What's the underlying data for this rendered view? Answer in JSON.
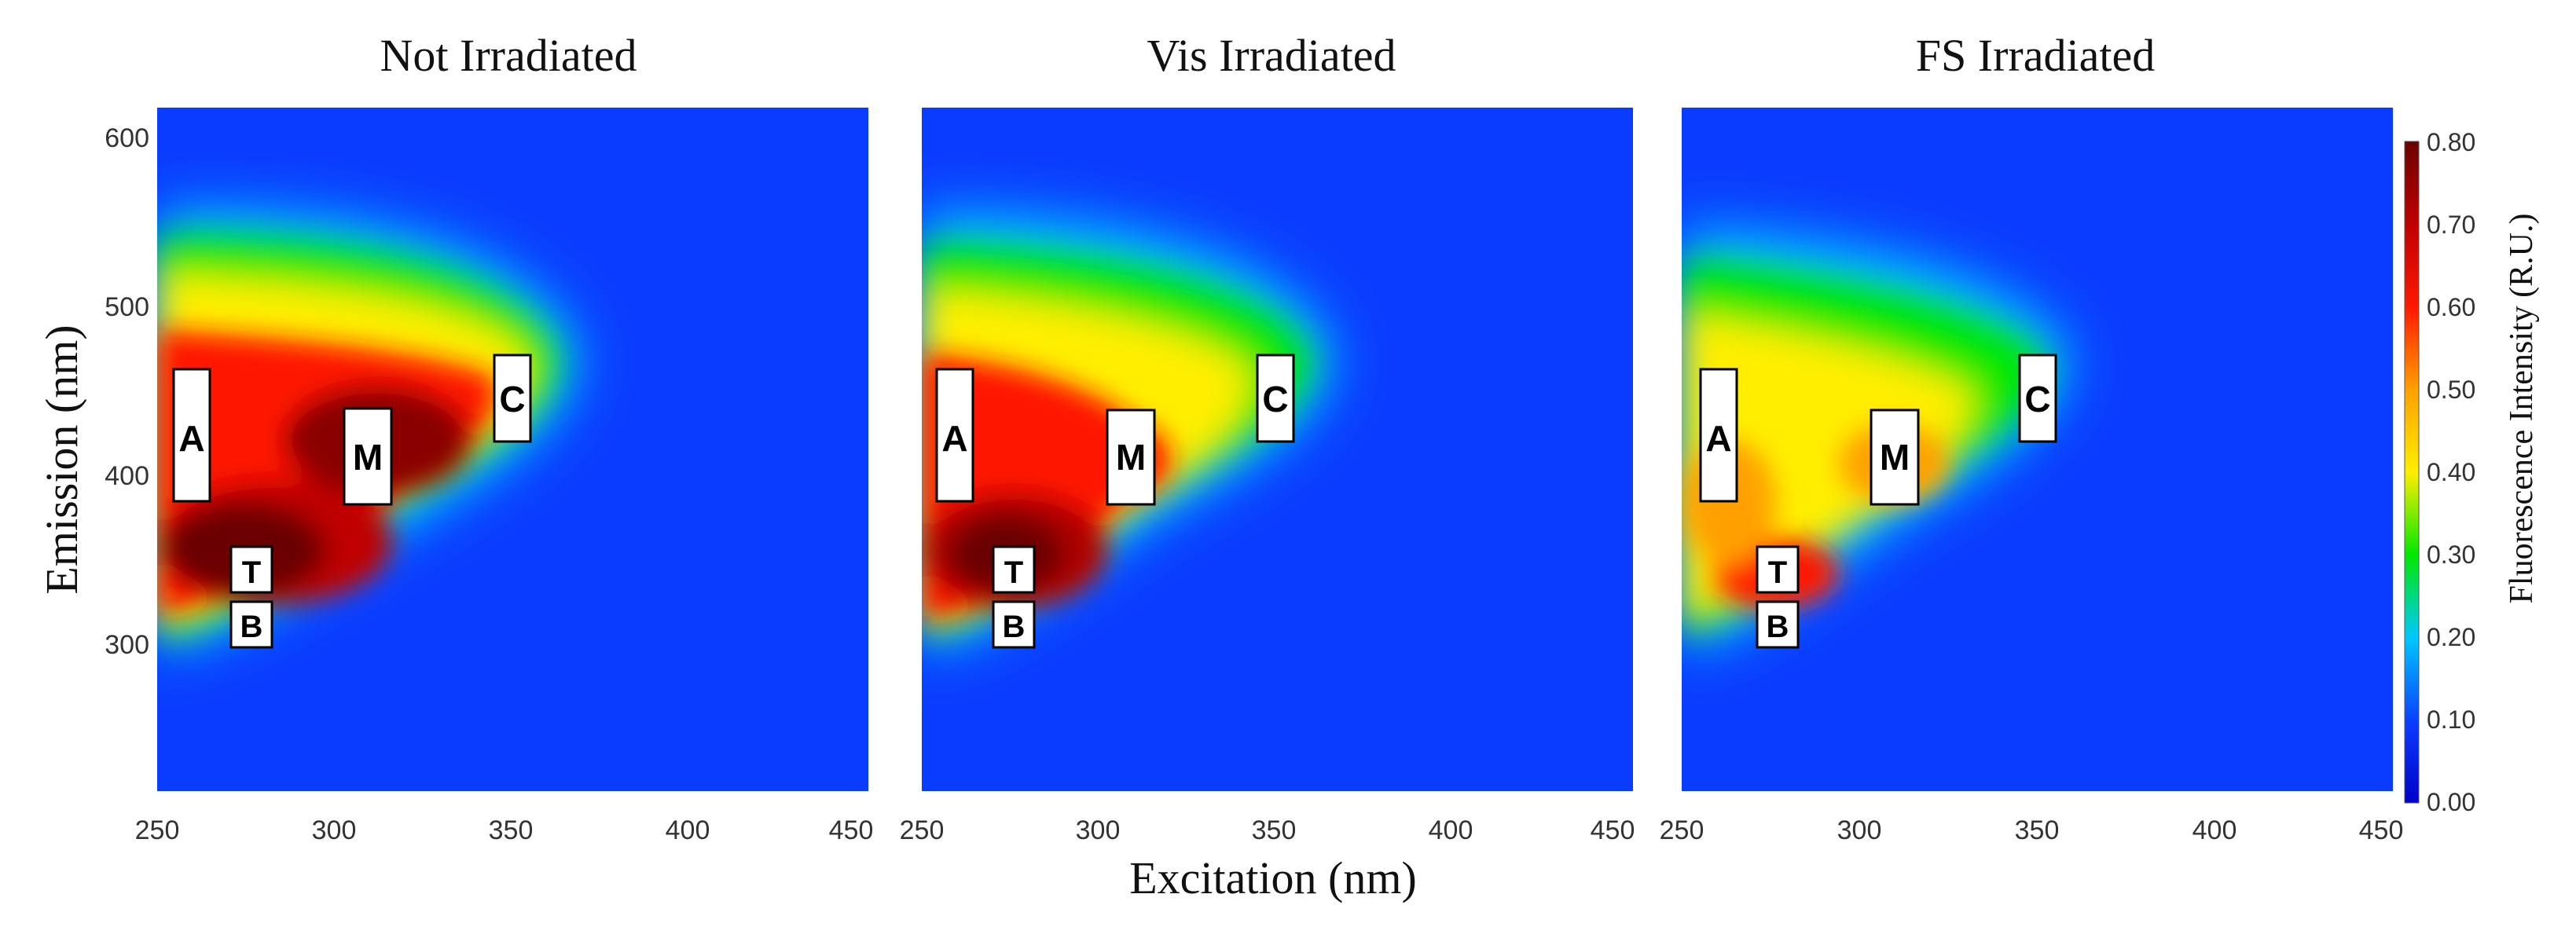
{
  "chart_data": [
    {
      "type": "heatmap",
      "title": "Not Irradiated",
      "xlabel": "Excitation (nm)",
      "ylabel": "Emission (nm)",
      "xlim": [
        250,
        450
      ],
      "ylim": [
        210,
        620
      ],
      "x_ticks": [
        "250",
        "300",
        "350",
        "400",
        "450"
      ],
      "y_ticks": [
        "600",
        "500",
        "400",
        "300"
      ],
      "peaks": [
        {
          "ex": 285,
          "em": 360,
          "intensity": 0.8
        },
        {
          "ex": 262,
          "em": 400,
          "intensity": 0.7
        },
        {
          "ex": 312,
          "em": 420,
          "intensity": 0.78
        },
        {
          "ex": 340,
          "em": 455,
          "intensity": 0.4
        }
      ],
      "regions": [
        {
          "label": "A",
          "ex": 260,
          "em": 425
        },
        {
          "label": "M",
          "ex": 310,
          "em": 410
        },
        {
          "label": "C",
          "ex": 350,
          "em": 445
        },
        {
          "label": "T",
          "ex": 277,
          "em": 342
        },
        {
          "label": "B",
          "ex": 277,
          "em": 310
        }
      ]
    },
    {
      "type": "heatmap",
      "title": "Vis Irradiated",
      "xlabel": "Excitation (nm)",
      "ylabel": "Emission (nm)",
      "xlim": [
        250,
        450
      ],
      "ylim": [
        210,
        620
      ],
      "x_ticks": [
        "250",
        "300",
        "350",
        "400",
        "450"
      ],
      "y_ticks": [],
      "peaks": [
        {
          "ex": 275,
          "em": 345,
          "intensity": 0.8
        },
        {
          "ex": 260,
          "em": 400,
          "intensity": 0.6
        },
        {
          "ex": 305,
          "em": 410,
          "intensity": 0.58
        },
        {
          "ex": 340,
          "em": 450,
          "intensity": 0.34
        }
      ],
      "regions": [
        {
          "label": "A",
          "ex": 260,
          "em": 425
        },
        {
          "label": "M",
          "ex": 310,
          "em": 410
        },
        {
          "label": "C",
          "ex": 350,
          "em": 445
        },
        {
          "label": "T",
          "ex": 277,
          "em": 342
        },
        {
          "label": "B",
          "ex": 277,
          "em": 310
        }
      ]
    },
    {
      "type": "heatmap",
      "title": "FS Irradiated",
      "xlabel": "Excitation (nm)",
      "ylabel": "Emission (nm)",
      "xlim": [
        250,
        450
      ],
      "ylim": [
        210,
        620
      ],
      "x_ticks": [
        "250",
        "300",
        "350",
        "400",
        "450"
      ],
      "y_ticks": [],
      "peaks": [
        {
          "ex": 278,
          "em": 340,
          "intensity": 0.62
        },
        {
          "ex": 260,
          "em": 410,
          "intensity": 0.46
        },
        {
          "ex": 312,
          "em": 405,
          "intensity": 0.53
        },
        {
          "ex": 340,
          "em": 440,
          "intensity": 0.3
        }
      ],
      "regions": [
        {
          "label": "A",
          "ex": 260,
          "em": 425
        },
        {
          "label": "M",
          "ex": 310,
          "em": 410
        },
        {
          "label": "C",
          "ex": 350,
          "em": 445
        },
        {
          "label": "T",
          "ex": 277,
          "em": 342
        },
        {
          "label": "B",
          "ex": 277,
          "em": 310
        }
      ]
    }
  ],
  "colorbar": {
    "label": "Fluorescence Intensity (R.U.)",
    "range": [
      0.0,
      0.8
    ],
    "ticks": [
      "0.80",
      "0.70",
      "0.60",
      "0.50",
      "0.40",
      "0.30",
      "0.20",
      "0.10",
      "0.00"
    ]
  },
  "shared_xlabel": "Excitation (nm)",
  "shared_ylabel": "Emission (nm)"
}
